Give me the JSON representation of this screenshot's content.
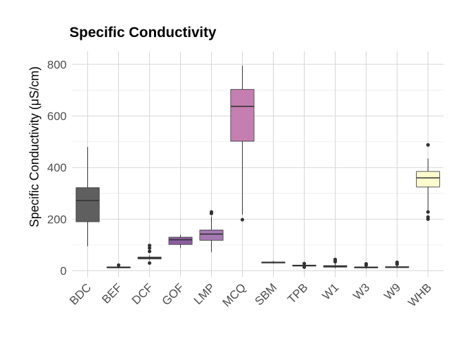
{
  "chart_data": {
    "type": "box",
    "title": "Specific Conductivity",
    "xlabel": "",
    "ylabel": "Specific Conductivity (μS/cm)",
    "ylim": [
      -25,
      850
    ],
    "yticks": [
      0,
      200,
      400,
      600,
      800
    ],
    "grid": true,
    "legend": "none",
    "categories": [
      "BDC",
      "BEF",
      "DCF",
      "GOF",
      "LMP",
      "MCQ",
      "SBM",
      "TPB",
      "W1",
      "W3",
      "W9",
      "WHB"
    ],
    "boxes": [
      {
        "category": "BDC",
        "color": "#5f5f5f",
        "min": 95,
        "q1": 190,
        "median": 272,
        "q3": 322,
        "max": 480,
        "outliers": []
      },
      {
        "category": "BEF",
        "color": "#3b2a4a",
        "min": 10,
        "q1": 13,
        "median": 14,
        "q3": 15,
        "max": 18,
        "outliers": [
          22
        ]
      },
      {
        "category": "DCF",
        "color": "#3b2a4a",
        "min": 42,
        "q1": 46,
        "median": 50,
        "q3": 53,
        "max": 60,
        "outliers": [
          30,
          75,
          88,
          98
        ]
      },
      {
        "category": "GOF",
        "color": "#8b5e9e",
        "min": 88,
        "q1": 102,
        "median": 120,
        "q3": 130,
        "max": 140,
        "outliers": []
      },
      {
        "category": "LMP",
        "color": "#a57ab2",
        "min": 72,
        "q1": 118,
        "median": 142,
        "q3": 158,
        "max": 210,
        "outliers": [
          222,
          228
        ]
      },
      {
        "category": "MCQ",
        "color": "#c47fb0",
        "min": 218,
        "q1": 502,
        "median": 637,
        "q3": 703,
        "max": 795,
        "outliers": [
          198
        ]
      },
      {
        "category": "SBM",
        "color": "#c47fb0",
        "min": 28,
        "q1": 30,
        "median": 32,
        "q3": 34,
        "max": 38,
        "outliers": []
      },
      {
        "category": "TPB",
        "color": "#d88aa0",
        "min": 15,
        "q1": 18,
        "median": 20,
        "q3": 22,
        "max": 25,
        "outliers": [
          14,
          28
        ]
      },
      {
        "category": "W1",
        "color": "#e89a9a",
        "min": 10,
        "q1": 14,
        "median": 17,
        "q3": 20,
        "max": 30,
        "outliers": [
          35,
          40,
          44
        ]
      },
      {
        "category": "W3",
        "color": "#f0b89a",
        "min": 8,
        "q1": 11,
        "median": 13,
        "q3": 15,
        "max": 18,
        "outliers": [
          22,
          27
        ]
      },
      {
        "category": "W9",
        "color": "#f6d6a8",
        "min": 10,
        "q1": 12,
        "median": 14,
        "q3": 16,
        "max": 20,
        "outliers": [
          25,
          30,
          33
        ]
      },
      {
        "category": "WHB",
        "color": "#fbfbce",
        "min": 235,
        "q1": 325,
        "median": 360,
        "q3": 385,
        "max": 435,
        "outliers": [
          200,
          208,
          228,
          488
        ]
      }
    ]
  }
}
